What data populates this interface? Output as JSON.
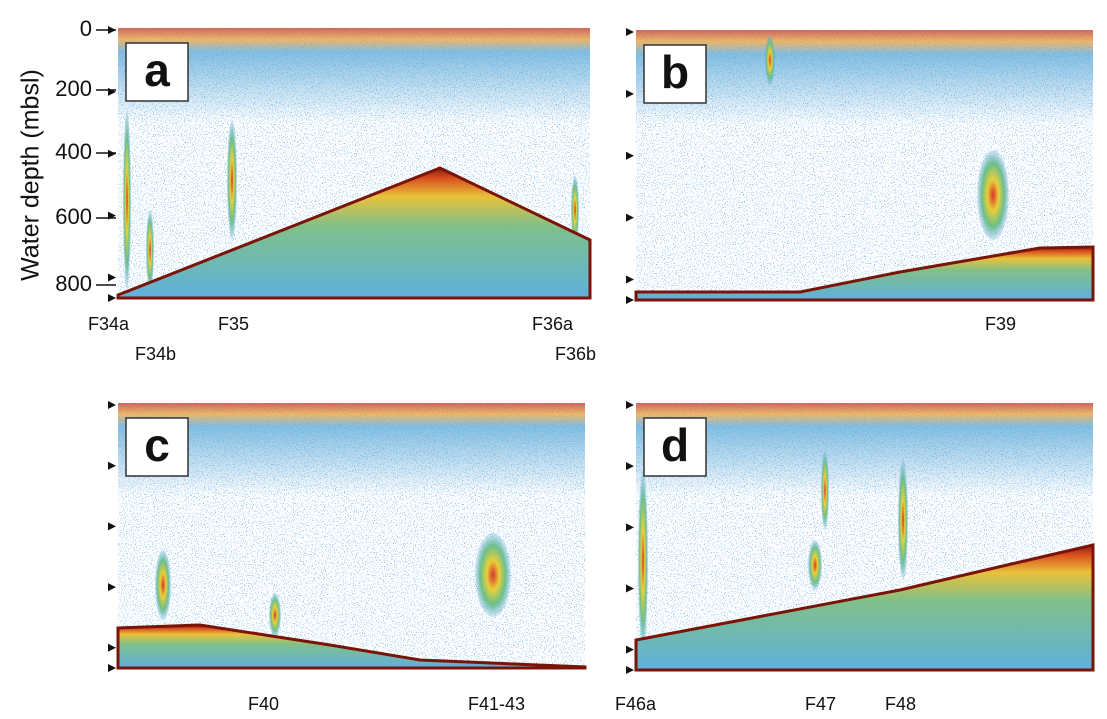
{
  "y_axis": {
    "label": "Water depth (mbsl)",
    "ticks": [
      0,
      200,
      400,
      600,
      800
    ]
  },
  "panels": [
    {
      "label": "a",
      "flares": [
        "F34a",
        "F34b",
        "F35",
        "F36a",
        "F36b"
      ]
    },
    {
      "label": "b",
      "flares": [
        "F39"
      ]
    },
    {
      "label": "c",
      "flares": [
        "F40",
        "F41-43"
      ]
    },
    {
      "label": "d",
      "flares": [
        "F46a",
        "F47",
        "F48"
      ]
    }
  ]
}
